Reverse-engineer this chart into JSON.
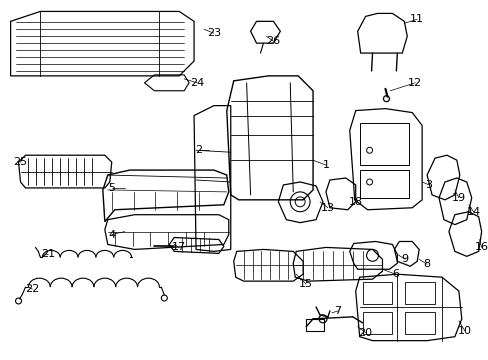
{
  "title": "",
  "background_color": "#ffffff",
  "line_color": "#000000",
  "text_color": "#000000",
  "fig_width": 4.89,
  "fig_height": 3.6,
  "dpi": 100,
  "label_fontsize": 8.0
}
